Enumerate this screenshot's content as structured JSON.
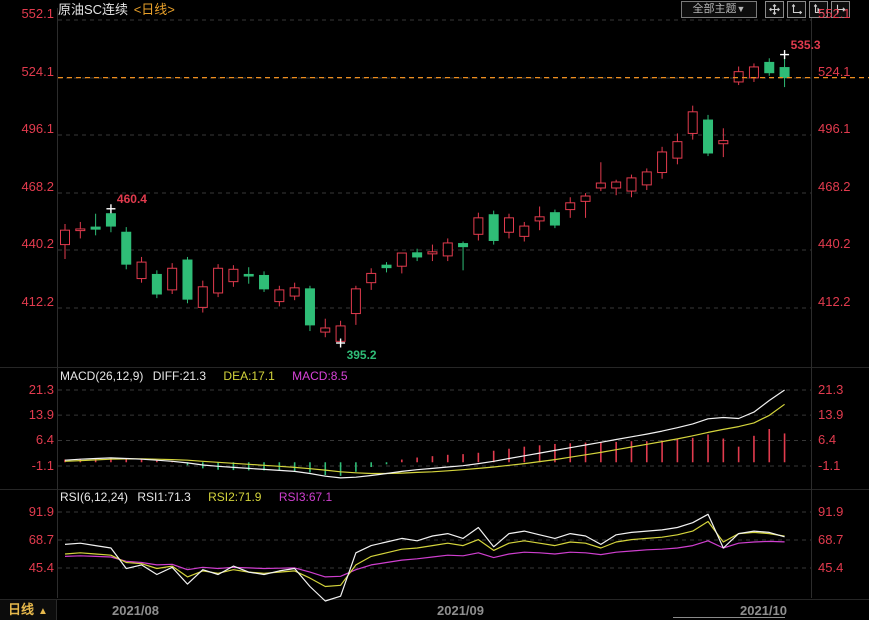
{
  "ui": {
    "title": {
      "symbol": "原油SC连续",
      "period": "<日线>"
    },
    "toolbar": {
      "themes_label": "全部主题",
      "dropdown_arrow": "▼",
      "icon_names": [
        "crosshair-icon",
        "fit-y-axis-icon",
        "fit-x-axis-icon",
        "goto-latest-icon"
      ]
    },
    "indicators": {
      "macd": {
        "name": "MACD(26,12,9)",
        "diff": "DIFF:21.3",
        "dea": "DEA:17.1",
        "macd": "MACD:8.5"
      },
      "rsi": {
        "name": "RSI(6,12,24)",
        "rsi1": "RSI1:71.3",
        "rsi2": "RSI2:71.9",
        "rsi3": "RSI3:67.1"
      }
    },
    "period_tab": {
      "label": "日线",
      "arrow": "▲"
    }
  },
  "colors": {
    "up": "#e23b4e",
    "down": "#2fbd77",
    "diff_line": "#f2f2f2",
    "dea_line": "#d4d43c",
    "macd_line": "#d943d9",
    "rsi1_line": "#f2f2f2",
    "rsi2_line": "#d4d43c",
    "rsi3_line": "#cf3fcf",
    "price_line": "#ef8e1e",
    "axis_label": "#e23b4e",
    "grid": "#373737"
  },
  "chart_data": {
    "type": "candlestick",
    "symbol": "原油SC连续",
    "period": "日线",
    "x_axis": {
      "labels": [
        "2021/08",
        "2021/09",
        "2021/10"
      ]
    },
    "main": {
      "y_ticks": [
        552.1,
        524.1,
        496.1,
        468.2,
        440.2,
        412.2
      ],
      "y_tick_labels": [
        "552.1",
        "524.1",
        "496.1",
        "468.2",
        "440.2",
        "412.2"
      ],
      "current_price": 524.1,
      "annotations": [
        {
          "text": "460.4",
          "value": 460.4,
          "index": 3,
          "type": "high",
          "color_role": "up"
        },
        {
          "text": "395.2",
          "value": 395.2,
          "index": 18,
          "type": "low",
          "color_role": "down"
        },
        {
          "text": "535.3",
          "value": 535.3,
          "index": 47,
          "type": "high",
          "color_role": "up"
        }
      ],
      "candles_ohlc": [
        [
          443.0,
          453.0,
          436.0,
          450.0
        ],
        [
          449.8,
          454.0,
          446.0,
          450.6
        ],
        [
          451.5,
          458.0,
          447.5,
          450.5
        ],
        [
          458.0,
          460.4,
          449.0,
          452.0
        ],
        [
          449.0,
          451.5,
          431.0,
          433.5
        ],
        [
          426.5,
          437.0,
          424.5,
          434.5
        ],
        [
          428.5,
          430.5,
          417.0,
          419.0
        ],
        [
          421.0,
          434.0,
          419.0,
          431.5
        ],
        [
          435.5,
          437.0,
          414.5,
          416.5
        ],
        [
          412.5,
          425.5,
          410.0,
          422.5
        ],
        [
          419.5,
          433.5,
          417.5,
          431.5
        ],
        [
          425.0,
          433.0,
          422.5,
          431.0
        ],
        [
          428.5,
          432.0,
          424.0,
          427.9
        ],
        [
          428.0,
          430.0,
          420.0,
          421.5
        ],
        [
          415.3,
          423.0,
          413.0,
          421.0
        ],
        [
          418.0,
          424.5,
          416.0,
          422.0
        ],
        [
          421.5,
          423.0,
          401.0,
          404.0
        ],
        [
          400.5,
          407.0,
          398.0,
          402.5
        ],
        [
          396.0,
          406.0,
          395.2,
          403.5
        ],
        [
          409.5,
          423.0,
          404.0,
          421.5
        ],
        [
          424.5,
          431.5,
          421.0,
          429.0
        ],
        [
          433.0,
          434.5,
          429.5,
          431.8
        ],
        [
          432.5,
          438.5,
          429.0,
          438.9
        ],
        [
          439.0,
          441.0,
          435.0,
          437.0
        ],
        [
          438.5,
          443.0,
          435.0,
          439.5
        ],
        [
          437.5,
          446.0,
          435.0,
          443.8
        ],
        [
          443.5,
          444.5,
          430.5,
          442.0
        ],
        [
          448.0,
          458.5,
          445.0,
          456.0
        ],
        [
          457.5,
          459.5,
          443.0,
          445.0
        ],
        [
          449.0,
          458.0,
          446.0,
          456.0
        ],
        [
          447.0,
          454.0,
          444.5,
          452.0
        ],
        [
          454.5,
          461.5,
          450.0,
          456.5
        ],
        [
          458.5,
          460.0,
          451.0,
          452.5
        ],
        [
          460.0,
          466.0,
          456.0,
          463.3
        ],
        [
          464.0,
          468.0,
          456.0,
          466.6
        ],
        [
          470.5,
          483.0,
          469.0,
          472.9
        ],
        [
          470.5,
          474.5,
          467.0,
          473.4
        ],
        [
          469.0,
          477.0,
          466.0,
          475.4
        ],
        [
          472.0,
          480.0,
          469.5,
          478.3
        ],
        [
          478.0,
          490.5,
          475.0,
          488.0
        ],
        [
          485.0,
          497.0,
          482.0,
          493.0
        ],
        [
          497.0,
          510.5,
          494.0,
          507.5
        ],
        [
          503.5,
          506.0,
          486.0,
          487.5
        ],
        [
          492.0,
          499.5,
          485.5,
          493.5
        ],
        [
          522.0,
          529.5,
          520.5,
          527.0
        ],
        [
          524.0,
          531.0,
          522.0,
          529.3
        ],
        [
          531.5,
          533.5,
          525.0,
          526.5
        ],
        [
          529.0,
          535.3,
          519.5,
          524.1
        ]
      ]
    },
    "macd": {
      "params": "26,12,9",
      "diff_value": 21.3,
      "dea_value": 17.1,
      "macd_value": 8.5,
      "y_ticks": [
        21.3,
        13.9,
        6.4,
        -1.1
      ],
      "y_tick_labels": [
        "21.3",
        "13.9",
        "6.4",
        "-1.1"
      ],
      "diff": [
        0.6,
        0.9,
        1.1,
        1.3,
        1.1,
        0.9,
        0.6,
        0.3,
        -0.2,
        -0.8,
        -1.2,
        -1.5,
        -1.8,
        -2.1,
        -2.4,
        -2.7,
        -3.3,
        -4.1,
        -4.6,
        -4.4,
        -3.9,
        -3.3,
        -2.7,
        -2.2,
        -1.8,
        -1.4,
        -1.0,
        -0.4,
        0.3,
        1.1,
        1.9,
        2.7,
        3.5,
        4.3,
        5.1,
        5.9,
        6.7,
        7.5,
        8.3,
        9.2,
        10.2,
        11.3,
        12.8,
        13.2,
        12.9,
        14.8,
        18.2,
        21.3
      ],
      "dea": [
        0.3,
        0.5,
        0.7,
        0.9,
        1.0,
        1.0,
        0.9,
        0.8,
        0.6,
        0.3,
        0.0,
        -0.3,
        -0.6,
        -0.9,
        -1.2,
        -1.5,
        -1.9,
        -2.3,
        -2.8,
        -3.1,
        -3.3,
        -3.3,
        -3.2,
        -3.0,
        -2.8,
        -2.5,
        -2.2,
        -1.8,
        -1.4,
        -0.9,
        -0.4,
        0.2,
        0.8,
        1.5,
        2.2,
        2.9,
        3.7,
        4.5,
        5.3,
        6.1,
        6.9,
        7.8,
        8.8,
        9.7,
        10.5,
        11.6,
        13.8,
        17.1
      ],
      "hist": [
        0.8,
        1.0,
        1.2,
        1.4,
        1.0,
        0.8,
        0.5,
        0.3,
        -0.9,
        -1.8,
        -2.2,
        -2.3,
        -2.4,
        -2.4,
        -2.5,
        -2.6,
        -3.0,
        -3.8,
        -4.0,
        -2.8,
        -1.4,
        -0.6,
        0.8,
        1.4,
        1.8,
        2.2,
        2.4,
        2.8,
        3.4,
        4.0,
        4.6,
        5.0,
        5.4,
        5.6,
        5.8,
        6.0,
        6.0,
        6.2,
        6.2,
        6.4,
        6.8,
        7.2,
        8.2,
        7.0,
        4.6,
        7.8,
        9.8,
        8.5
      ]
    },
    "rsi": {
      "params": "6,12,24",
      "rsi1_value": 71.3,
      "rsi2_value": 71.9,
      "rsi3_value": 67.1,
      "y_ticks": [
        91.9,
        68.7,
        45.4
      ],
      "y_tick_labels": [
        "91.9",
        "68.7",
        "45.4"
      ],
      "rsi1": [
        65,
        66,
        64,
        62,
        45,
        48,
        40,
        46,
        32,
        44,
        40,
        47,
        42,
        40,
        43,
        45,
        30,
        18,
        22,
        58,
        64,
        67,
        70,
        68,
        72,
        74,
        70,
        79,
        63,
        74,
        76,
        73,
        70,
        74,
        72,
        65,
        73,
        75,
        76,
        77,
        79,
        83,
        90,
        62,
        74,
        76,
        75,
        71.3
      ],
      "rsi2": [
        57,
        58,
        57,
        56,
        50,
        49,
        45,
        47,
        38,
        43,
        41,
        44,
        42,
        41,
        42,
        43,
        37,
        30,
        31,
        48,
        55,
        58,
        61,
        62,
        64,
        66,
        64,
        69,
        60,
        66,
        68,
        66,
        64,
        67,
        66,
        62,
        67,
        69,
        70,
        71,
        73,
        76,
        84,
        67,
        74,
        75,
        74,
        71.9
      ],
      "rsi3": [
        55,
        55.5,
        55,
        54.5,
        51,
        50,
        48,
        48.5,
        44,
        46,
        45,
        46,
        45.5,
        45,
        45.2,
        45.5,
        42,
        38,
        38.5,
        44,
        48,
        50,
        52,
        53,
        54.5,
        56,
        55.5,
        58,
        54,
        57,
        58.5,
        58,
        57,
        58.5,
        58,
        56.5,
        58.5,
        59.5,
        60.5,
        61,
        62,
        64,
        68,
        62,
        66,
        67,
        67.5,
        67.1
      ]
    }
  }
}
